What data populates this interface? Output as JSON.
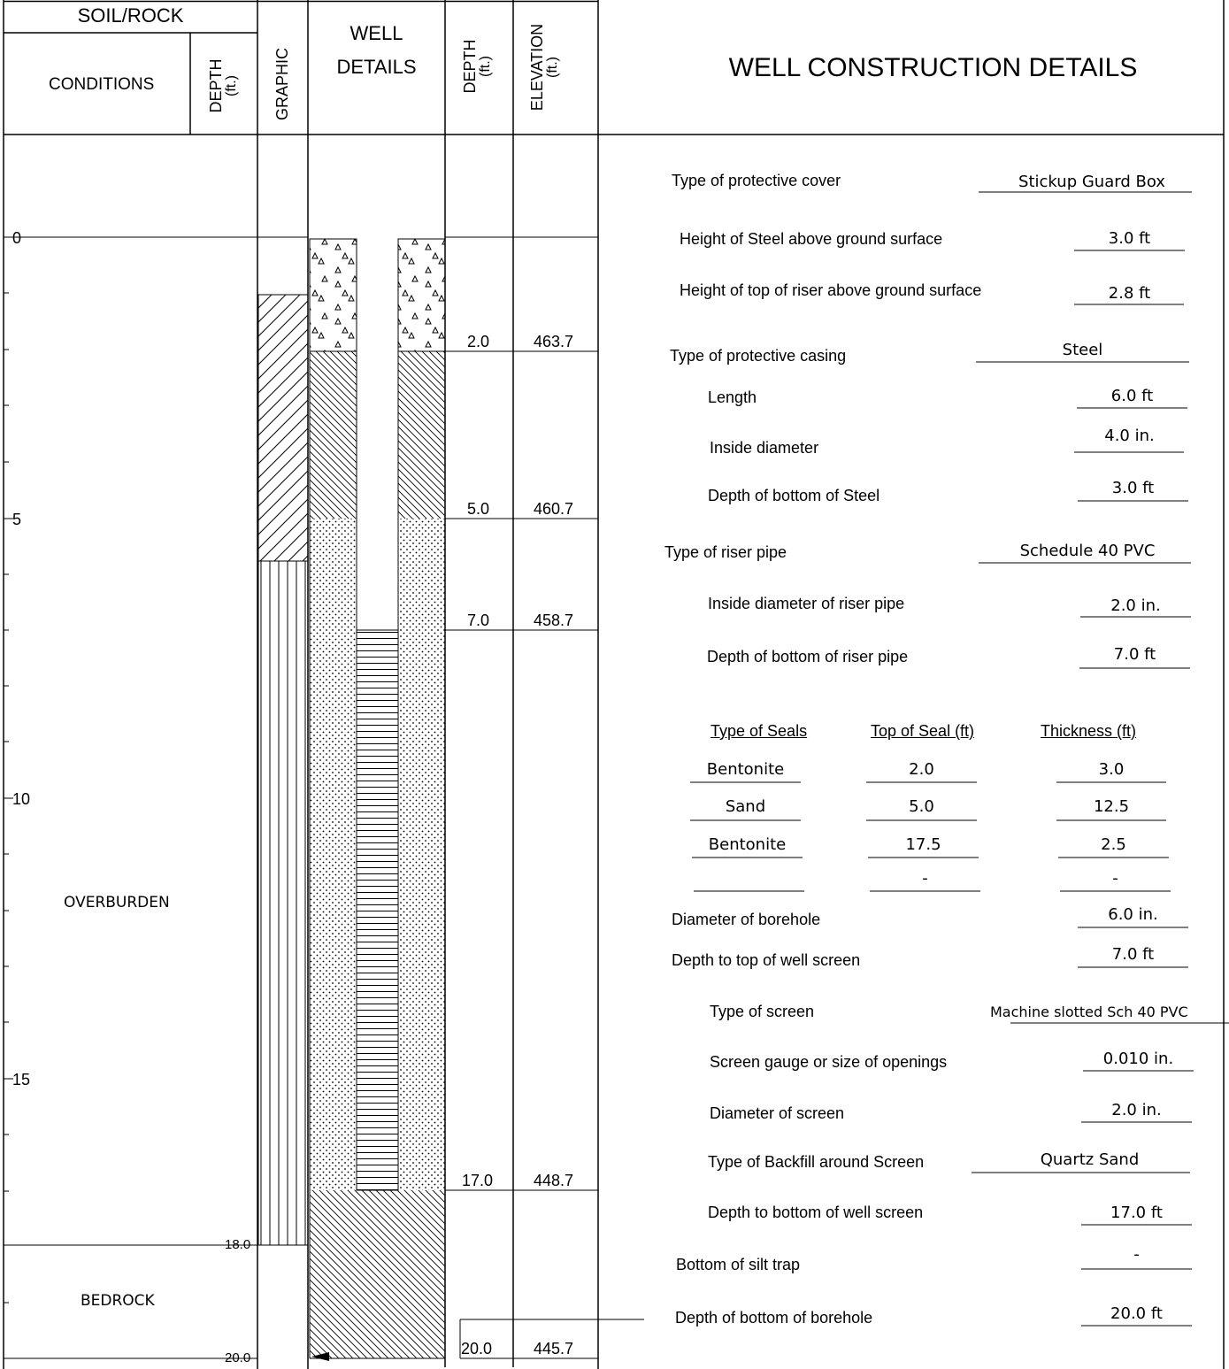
{
  "header": {
    "soil_rock": "SOIL/ROCK",
    "conditions": "CONDITIONS",
    "depth_label": "DEPTH",
    "ft_unit": "(ft.)",
    "graphic": "GRAPHIC",
    "well": "WELL",
    "details": "DETAILS",
    "elevation_label": "ELEVATION",
    "title": "WELL CONSTRUCTION DETAILS"
  },
  "depth_scale": [
    "0",
    "5",
    "10",
    "15"
  ],
  "strata": [
    {
      "name": "OVERBURDEN",
      "bottom_label": "18.0"
    },
    {
      "name": "BEDROCK",
      "bottom_label": "20.0"
    }
  ],
  "well_levels": [
    {
      "depth": "2.0",
      "elevation": "463.7"
    },
    {
      "depth": "5.0",
      "elevation": "460.7"
    },
    {
      "depth": "7.0",
      "elevation": "458.7"
    },
    {
      "depth": "17.0",
      "elevation": "448.7"
    },
    {
      "depth": "20.0",
      "elevation": "445.7"
    }
  ],
  "details": [
    {
      "label": "Type of protective cover",
      "value": "Stickup Guard Box"
    },
    {
      "label": "Height of Steel above ground surface",
      "value": "3.0 ft"
    },
    {
      "label": "Height of top of riser above ground surface",
      "value": "2.8 ft"
    },
    {
      "label": "Type of protective casing",
      "value": "Steel"
    },
    {
      "label": "Length",
      "value": "6.0 ft"
    },
    {
      "label": "Inside diameter",
      "value": "4.0 in."
    },
    {
      "label": "Depth of bottom of Steel",
      "value": "3.0 ft"
    },
    {
      "label": "Type of riser pipe",
      "value": "Schedule 40 PVC"
    },
    {
      "label": "Inside diameter of riser pipe",
      "value": "2.0 in."
    },
    {
      "label": "Depth of bottom of riser pipe",
      "value": "7.0 ft"
    },
    {
      "label": "Diameter of borehole",
      "value": "6.0 in."
    },
    {
      "label": "Depth to top of well screen",
      "value": "7.0 ft"
    },
    {
      "label": "Type of screen",
      "value": "Machine slotted Sch 40 PVC"
    },
    {
      "label": "Screen gauge or size of openings",
      "value": "0.010 in."
    },
    {
      "label": "Diameter of screen",
      "value": "2.0 in."
    },
    {
      "label": "Type of Backfill around Screen",
      "value": "Quartz Sand"
    },
    {
      "label": "Depth to bottom of well screen",
      "value": "17.0 ft"
    },
    {
      "label": "Bottom of silt trap",
      "value": "-"
    },
    {
      "label": "Depth of bottom of borehole",
      "value": "20.0 ft"
    }
  ],
  "seals": {
    "headers": [
      "Type of Seals",
      "Top of Seal (ft)",
      "Thickness (ft)"
    ],
    "rows": [
      [
        "Bentonite",
        "2.0",
        "3.0"
      ],
      [
        "Sand",
        "5.0",
        "12.5"
      ],
      [
        "Bentonite",
        "17.5",
        "2.5"
      ],
      [
        "",
        "-",
        "-"
      ]
    ]
  }
}
